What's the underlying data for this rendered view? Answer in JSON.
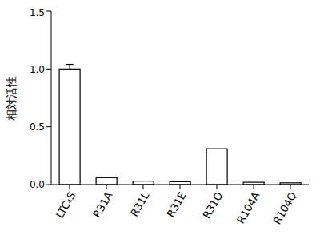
{
  "chart_data": {
    "type": "bar",
    "y_label": "相対活性",
    "categories": [
      "LTC₄S",
      "R31A",
      "R31L",
      "R31E",
      "R31Q",
      "R104A",
      "R104Q"
    ],
    "values": [
      1.0,
      0.06,
      0.03,
      0.025,
      0.31,
      0.02,
      0.015
    ],
    "errors": [
      0.04,
      null,
      null,
      null,
      null,
      null,
      null
    ],
    "color": "#ffffff",
    "ylim": [
      0,
      1.5
    ],
    "yticks": [
      {
        "value": 0,
        "label": "0.0"
      },
      0.5,
      {
        "value": 1,
        "label": "1.0"
      },
      1.5
    ],
    "grid": false
  }
}
